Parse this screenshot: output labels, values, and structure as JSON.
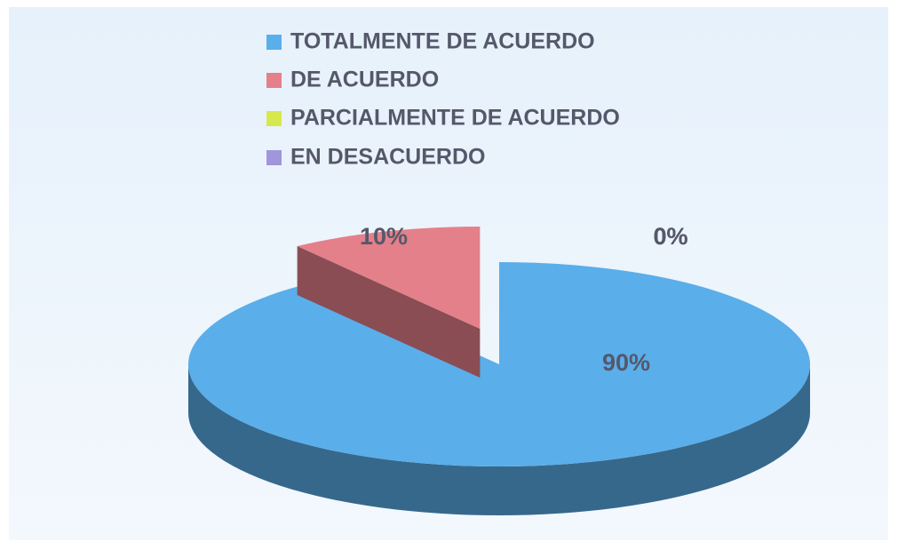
{
  "chart_data": {
    "type": "pie",
    "categories": [
      "TOTALMENTE DE ACUERDO",
      "DE ACUERDO",
      "PARCIALMENTE DE ACUERDO",
      "EN DESACUERDO"
    ],
    "values": [
      90,
      10,
      0,
      0
    ],
    "value_labels": [
      "90%",
      "10%",
      "0%",
      "0%"
    ],
    "colors": [
      "#5aaeea",
      "#e4808a",
      "#d6e84c",
      "#a195dc"
    ]
  }
}
